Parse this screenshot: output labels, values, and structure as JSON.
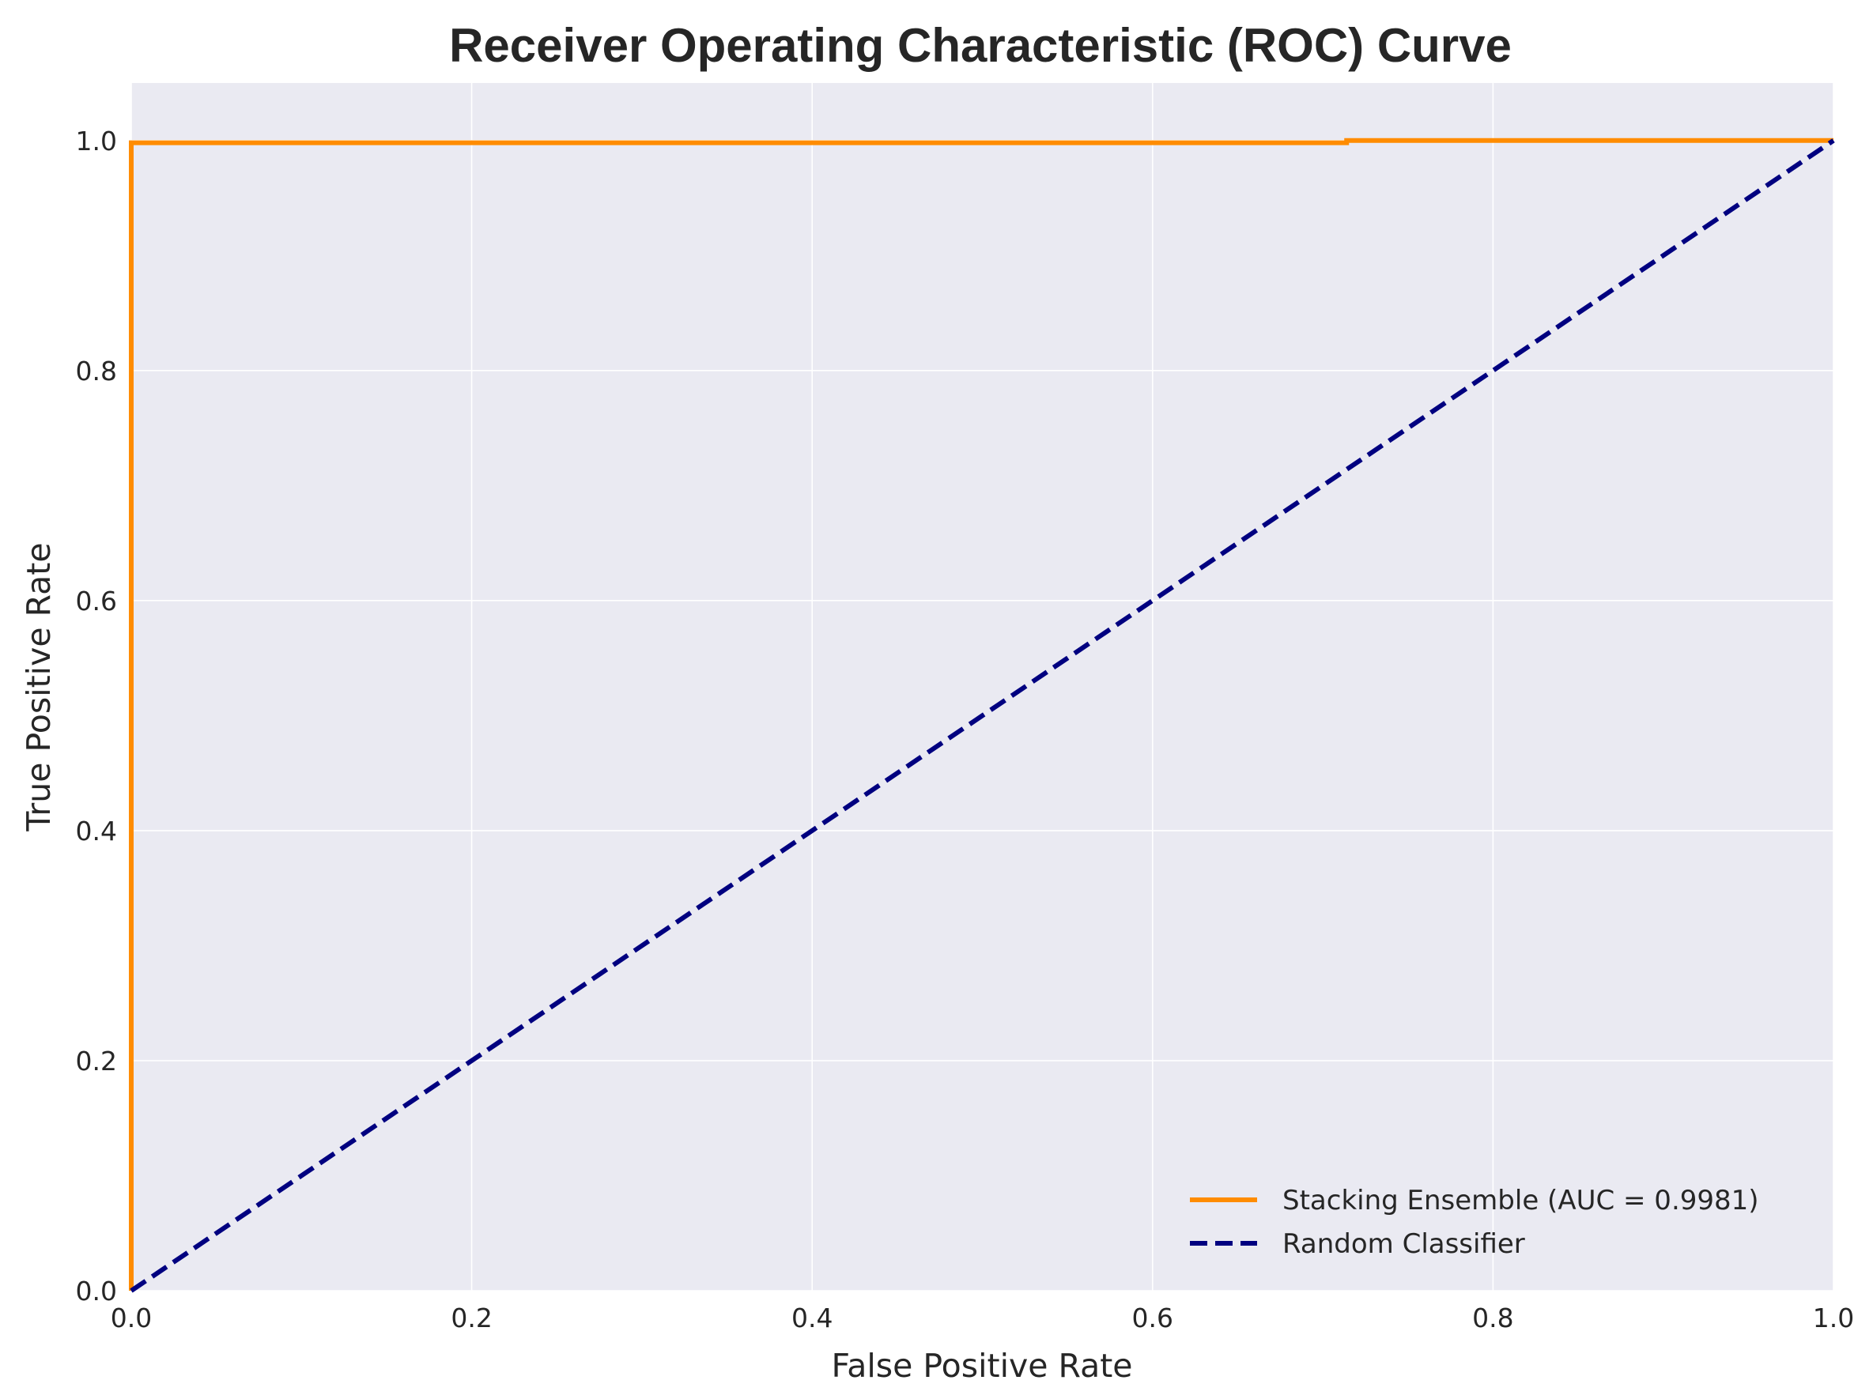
{
  "chart_data": {
    "type": "line",
    "title": "Receiver Operating Characteristic (ROC) Curve",
    "xlabel": "False Positive Rate",
    "ylabel": "True Positive Rate",
    "xlim": [
      0.0,
      1.0
    ],
    "ylim": [
      0.0,
      1.05
    ],
    "xticks": [
      "0.0",
      "0.2",
      "0.4",
      "0.6",
      "0.8",
      "1.0"
    ],
    "yticks": [
      "0.0",
      "0.2",
      "0.4",
      "0.6",
      "0.8",
      "1.0"
    ],
    "grid": true,
    "legend_position": "bottom-right",
    "background_color": "#eaeaf2",
    "series": [
      {
        "name": "Stacking Ensemble (AUC = 0.9981)",
        "color": "#ff8c00",
        "style": "solid",
        "x": [
          0.0,
          0.0,
          0.714,
          0.714,
          1.0
        ],
        "y": [
          0.0,
          0.998,
          0.998,
          1.0,
          1.0
        ]
      },
      {
        "name": "Random Classifier",
        "color": "#000080",
        "style": "dashed",
        "x": [
          0.0,
          1.0
        ],
        "y": [
          0.0,
          1.0
        ]
      }
    ]
  }
}
